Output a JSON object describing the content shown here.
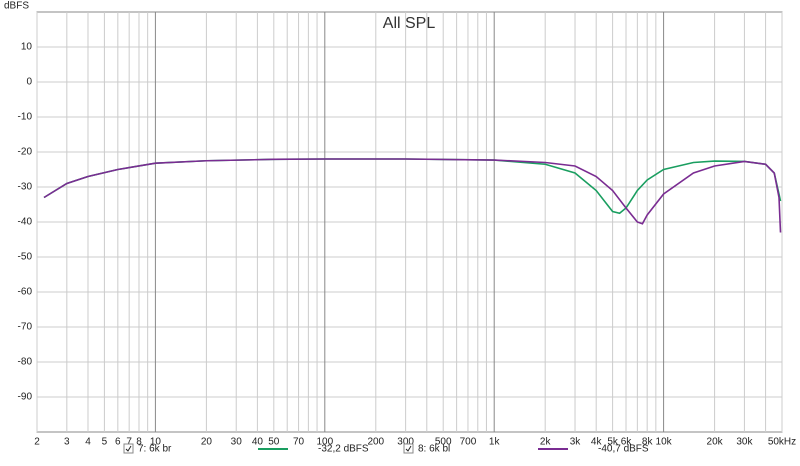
{
  "chart_data": {
    "type": "line",
    "title": "All SPL",
    "y_label": "dBFS",
    "xlog": true,
    "grid": true,
    "xlim": [
      2,
      50000
    ],
    "ylim": [
      -100,
      20
    ],
    "xticks": [
      2,
      3,
      4,
      5,
      6,
      7,
      8,
      10,
      20,
      30,
      40,
      50,
      70,
      100,
      200,
      300,
      500,
      700,
      {
        "value": 1000,
        "label": "1k"
      },
      {
        "value": 2000,
        "label": "2k"
      },
      {
        "value": 3000,
        "label": "3k"
      },
      {
        "value": 4000,
        "label": "4k"
      },
      {
        "value": 5000,
        "label": "5k"
      },
      {
        "value": 6000,
        "label": "6k"
      },
      {
        "value": 8000,
        "label": "8k"
      },
      {
        "value": 10000,
        "label": "10k"
      },
      {
        "value": 20000,
        "label": "20k"
      },
      {
        "value": 30000,
        "label": "30k"
      },
      {
        "value": 50000,
        "label": "50kHz"
      }
    ],
    "xminorticks": [
      9,
      60,
      80,
      90,
      400,
      600,
      800,
      900,
      7000,
      9000,
      40000
    ],
    "yticks": [
      10,
      0,
      -10,
      -20,
      -30,
      -40,
      -50,
      -60,
      -70,
      -80,
      -90
    ],
    "series": [
      {
        "name": "7: 6k br",
        "level": "-32,2 dBFS",
        "color": "#1a9e60",
        "x": [
          2.2,
          3,
          4,
          6,
          10,
          20,
          50,
          100,
          300,
          1000,
          2000,
          3000,
          4000,
          5000,
          5500,
          6000,
          7000,
          8000,
          10000,
          15000,
          20000,
          30000,
          40000,
          45000,
          48000,
          49000
        ],
        "values": [
          -33,
          -29,
          -27,
          -25,
          -23.2,
          -22.5,
          -22.1,
          -22,
          -22,
          -22.3,
          -23.5,
          -26,
          -31,
          -37,
          -37.5,
          -36,
          -31,
          -28,
          -25,
          -23,
          -22.6,
          -22.7,
          -23.5,
          -26,
          -32,
          -34
        ]
      },
      {
        "name": "8: 6k bl",
        "level": "-40,7 dBFS",
        "color": "#7a2c92",
        "x": [
          2.2,
          3,
          4,
          6,
          10,
          20,
          50,
          100,
          300,
          1000,
          2000,
          3000,
          4000,
          5000,
          6000,
          7000,
          7500,
          8000,
          10000,
          15000,
          20000,
          30000,
          40000,
          45000,
          48000,
          49000
        ],
        "values": [
          -33,
          -29,
          -27,
          -25,
          -23.2,
          -22.5,
          -22.1,
          -22,
          -22,
          -22.3,
          -23,
          -24,
          -27,
          -31,
          -36,
          -40,
          -40.5,
          -38,
          -32,
          -26,
          -24,
          -22.7,
          -23.5,
          -26,
          -33,
          -43
        ]
      }
    ]
  }
}
